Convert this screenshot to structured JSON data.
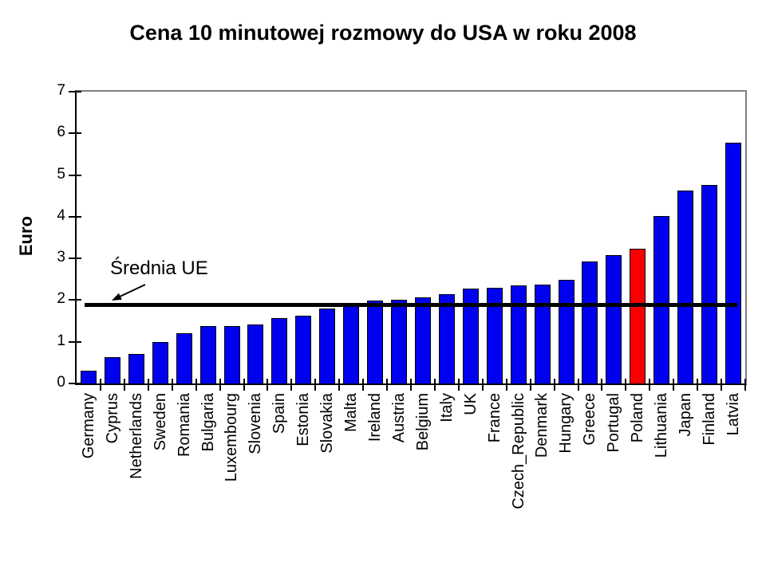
{
  "page": {
    "background": "#ffffff"
  },
  "chart_data": {
    "type": "bar",
    "title": "Cena 10 minutowej rozmowy do USA w roku 2008",
    "ylabel": "Euro",
    "xlabel": "",
    "ylim": [
      0,
      7
    ],
    "yticks": [
      0,
      1,
      2,
      3,
      4,
      5,
      6,
      7
    ],
    "grid": false,
    "legend": "none",
    "categories": [
      "Germany",
      "Cyprus",
      "Netherlands",
      "Sweden",
      "Romania",
      "Bulgaria",
      "Luxembourg",
      "Slovenia",
      "Spain",
      "Estonia",
      "Slovakia",
      "Malta",
      "Ireland",
      "Austria",
      "Belgium",
      "Italy",
      "UK",
      "France",
      "Czech_Republic",
      "Denmark",
      "Hungary",
      "Greece",
      "Portugal",
      "Poland",
      "Lithuania",
      "Japan",
      "Finland",
      "Latvia"
    ],
    "values": [
      0.3,
      0.63,
      0.7,
      1.0,
      1.2,
      1.37,
      1.37,
      1.42,
      1.57,
      1.62,
      1.79,
      1.87,
      1.98,
      2.0,
      2.07,
      2.14,
      2.28,
      2.3,
      2.36,
      2.37,
      2.48,
      2.92,
      3.08,
      3.24,
      4.01,
      4.62,
      4.77,
      5.77
    ],
    "bar_color": "#0000f0",
    "highlight_category": "Poland",
    "highlight_color": "#f80000",
    "average_line": {
      "value": 1.9,
      "label": "Średnia UE",
      "color": "#000000"
    },
    "axis_color": "#000000",
    "plot_border_color": "#808080"
  }
}
